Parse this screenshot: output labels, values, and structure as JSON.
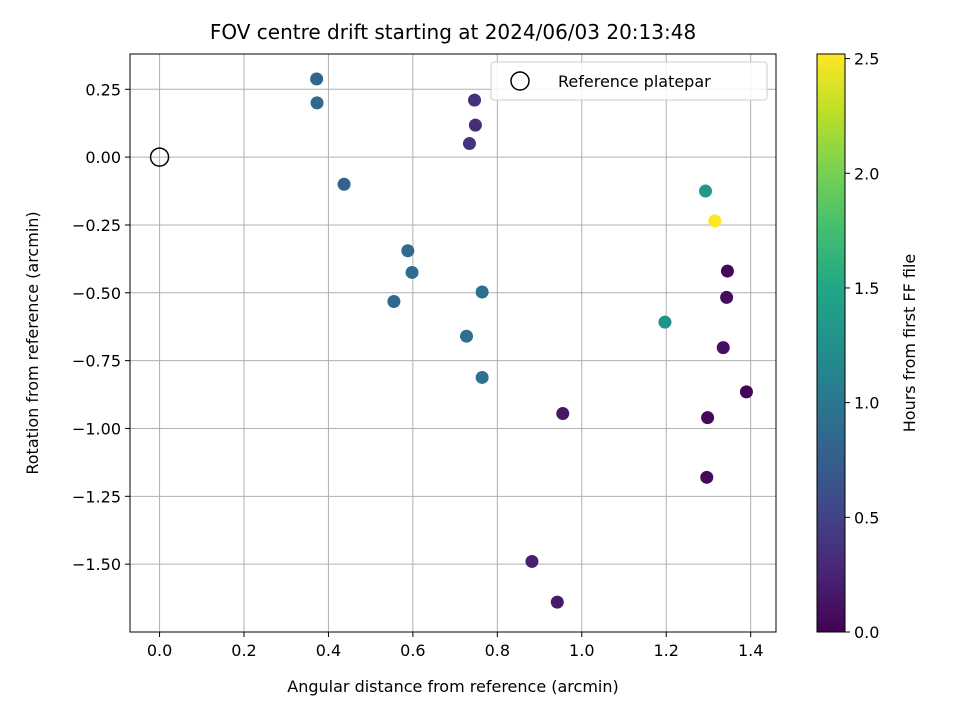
{
  "chart_data": {
    "type": "scatter",
    "title": "FOV centre drift starting at 2024/06/03 20:13:48",
    "xlabel": "Angular distance from reference (arcmin)",
    "ylabel": "Rotation from reference (arcmin)",
    "xlim": [
      -0.07,
      1.46
    ],
    "ylim": [
      -1.75,
      0.38
    ],
    "x_ticks": [
      0.0,
      0.2,
      0.4,
      0.6,
      0.8,
      1.0,
      1.2,
      1.4
    ],
    "x_tick_labels": [
      "0.0",
      "0.2",
      "0.4",
      "0.6",
      "0.8",
      "1.0",
      "1.2",
      "1.4"
    ],
    "y_ticks": [
      0.25,
      0.0,
      -0.25,
      -0.5,
      -0.75,
      -1.0,
      -1.25,
      -1.5
    ],
    "y_tick_labels": [
      "0.25",
      "0.00",
      "−0.25",
      "−0.50",
      "−0.75",
      "−1.00",
      "−1.25",
      "−1.50"
    ],
    "grid": true,
    "legend_position": "upper-right",
    "reference": {
      "name": "Reference platepar",
      "x": 0.0,
      "y": 0.0
    },
    "colorbar": {
      "label": "Hours from first FF file",
      "colormap": "viridis",
      "range": [
        0.0,
        2.52
      ],
      "ticks": [
        0.0,
        0.5,
        1.0,
        1.5,
        2.0,
        2.5
      ],
      "tick_labels": [
        "0.0",
        "0.5",
        "1.0",
        "1.5",
        "2.0",
        "2.5"
      ]
    },
    "points": [
      {
        "x": 1.39,
        "y": -0.865,
        "c": 0.02
      },
      {
        "x": 1.345,
        "y": -0.42,
        "c": 0.04
      },
      {
        "x": 1.298,
        "y": -0.96,
        "c": 0.05
      },
      {
        "x": 1.296,
        "y": -1.18,
        "c": 0.06
      },
      {
        "x": 1.343,
        "y": -0.517,
        "c": 0.07
      },
      {
        "x": 1.335,
        "y": -0.702,
        "c": 0.1
      },
      {
        "x": 0.955,
        "y": -0.945,
        "c": 0.15
      },
      {
        "x": 0.942,
        "y": -1.64,
        "c": 0.18
      },
      {
        "x": 0.882,
        "y": -1.49,
        "c": 0.22
      },
      {
        "x": 0.748,
        "y": 0.118,
        "c": 0.32
      },
      {
        "x": 0.746,
        "y": 0.21,
        "c": 0.35
      },
      {
        "x": 0.734,
        "y": 0.05,
        "c": 0.38
      },
      {
        "x": 0.437,
        "y": -0.1,
        "c": 0.8
      },
      {
        "x": 0.372,
        "y": 0.288,
        "c": 0.82
      },
      {
        "x": 0.373,
        "y": 0.2,
        "c": 0.85
      },
      {
        "x": 0.555,
        "y": -0.532,
        "c": 0.85
      },
      {
        "x": 0.588,
        "y": -0.345,
        "c": 0.88
      },
      {
        "x": 0.598,
        "y": -0.425,
        "c": 0.9
      },
      {
        "x": 0.727,
        "y": -0.66,
        "c": 0.92
      },
      {
        "x": 0.764,
        "y": -0.497,
        "c": 0.93
      },
      {
        "x": 0.764,
        "y": -0.812,
        "c": 0.95
      },
      {
        "x": 1.197,
        "y": -0.608,
        "c": 1.3
      },
      {
        "x": 1.293,
        "y": -0.125,
        "c": 1.35
      },
      {
        "x": 1.315,
        "y": -0.235,
        "c": 2.52
      }
    ]
  }
}
